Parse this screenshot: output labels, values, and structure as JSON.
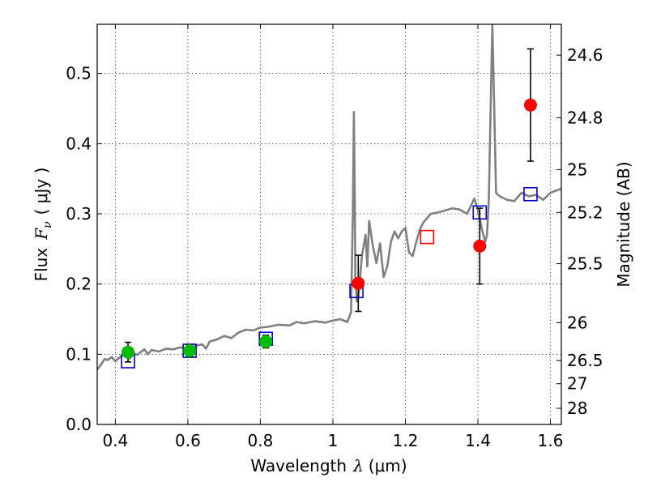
{
  "chart_data": {
    "type": "scatter",
    "xlabel_text": "Wavelength",
    "xlabel_symbol": "λ",
    "xlabel_unit": "(μm)",
    "ylabel_text": "Flux",
    "ylabel_symbol": "F",
    "ylabel_sub": "ν",
    "ylabel_unit": "( μJy )",
    "y2label": "Magnitude (AB)",
    "xlim": [
      0.35,
      1.63
    ],
    "ylim": [
      0.0,
      0.57
    ],
    "grid": true,
    "x_ticks": [
      0.4,
      0.6,
      0.8,
      1.0,
      1.2,
      1.4,
      1.6
    ],
    "x_tick_labels": [
      "0.4",
      "0.6",
      "0.8",
      "1",
      "1.2",
      "1.4",
      "1.6"
    ],
    "y_ticks": [
      0.0,
      0.1,
      0.2,
      0.3,
      0.4,
      0.5
    ],
    "y_tick_labels": [
      "0.0",
      "0.1",
      "0.2",
      "0.3",
      "0.4",
      "0.5"
    ],
    "mag_ticks": [
      {
        "label": "24.6",
        "flux": 0.526
      },
      {
        "label": "24.8",
        "flux": 0.437
      },
      {
        "label": "25",
        "flux": 0.363
      },
      {
        "label": "25.2",
        "flux": 0.302
      },
      {
        "label": "25.5",
        "flux": 0.229
      },
      {
        "label": "26",
        "flux": 0.145
      },
      {
        "label": "26.5",
        "flux": 0.091
      },
      {
        "label": "27",
        "flux": 0.058
      },
      {
        "label": "28",
        "flux": 0.023
      }
    ],
    "series": [
      {
        "name": "template-spectrum",
        "kind": "line",
        "color": "#808080",
        "x": [
          0.35,
          0.36,
          0.37,
          0.38,
          0.39,
          0.4,
          0.41,
          0.42,
          0.43,
          0.44,
          0.45,
          0.46,
          0.47,
          0.48,
          0.49,
          0.5,
          0.52,
          0.54,
          0.56,
          0.58,
          0.6,
          0.62,
          0.64,
          0.65,
          0.66,
          0.68,
          0.7,
          0.72,
          0.74,
          0.76,
          0.78,
          0.8,
          0.82,
          0.85,
          0.88,
          0.9,
          0.92,
          0.95,
          0.98,
          1.0,
          1.02,
          1.04,
          1.05,
          1.055,
          1.058,
          1.06,
          1.062,
          1.066,
          1.07,
          1.08,
          1.09,
          1.095,
          1.1,
          1.11,
          1.12,
          1.13,
          1.14,
          1.15,
          1.16,
          1.17,
          1.18,
          1.19,
          1.2,
          1.21,
          1.22,
          1.23,
          1.24,
          1.25,
          1.27,
          1.29,
          1.31,
          1.33,
          1.35,
          1.37,
          1.38,
          1.39,
          1.4,
          1.41,
          1.42,
          1.425,
          1.43,
          1.435,
          1.44,
          1.45,
          1.46,
          1.48,
          1.5,
          1.52,
          1.54,
          1.56,
          1.58,
          1.6,
          1.63
        ],
        "y": [
          0.078,
          0.085,
          0.093,
          0.092,
          0.096,
          0.09,
          0.095,
          0.098,
          0.1,
          0.094,
          0.102,
          0.099,
          0.103,
          0.107,
          0.1,
          0.106,
          0.104,
          0.108,
          0.107,
          0.11,
          0.106,
          0.112,
          0.114,
          0.108,
          0.118,
          0.121,
          0.126,
          0.123,
          0.131,
          0.135,
          0.134,
          0.138,
          0.139,
          0.142,
          0.141,
          0.146,
          0.144,
          0.147,
          0.145,
          0.148,
          0.15,
          0.146,
          0.16,
          0.3,
          0.445,
          0.35,
          0.21,
          0.175,
          0.18,
          0.24,
          0.27,
          0.225,
          0.29,
          0.255,
          0.23,
          0.258,
          0.21,
          0.225,
          0.26,
          0.275,
          0.265,
          0.275,
          0.28,
          0.245,
          0.24,
          0.26,
          0.278,
          0.288,
          0.3,
          0.302,
          0.305,
          0.308,
          0.306,
          0.3,
          0.311,
          0.322,
          0.305,
          0.28,
          0.26,
          0.27,
          0.32,
          0.45,
          0.57,
          0.33,
          0.325,
          0.32,
          0.318,
          0.33,
          0.325,
          0.327,
          0.32,
          0.33,
          0.336
        ]
      },
      {
        "name": "model-photometry",
        "kind": "open-square",
        "color": "#0000dd",
        "x": [
          0.435,
          0.605,
          0.815,
          1.065,
          1.405,
          1.545
        ],
        "y": [
          0.09,
          0.105,
          0.122,
          0.19,
          0.302,
          0.328
        ]
      },
      {
        "name": "model-photometry-highlight",
        "kind": "open-square",
        "color": "#ff0000",
        "x": [
          1.26
        ],
        "y": [
          0.267
        ]
      },
      {
        "name": "observed-optical",
        "kind": "filled-circle",
        "color": "#00bb00",
        "x": [
          0.435,
          0.605,
          0.815
        ],
        "y": [
          0.103,
          0.105,
          0.118
        ],
        "err": [
          0.014,
          0.009,
          0.009
        ]
      },
      {
        "name": "observed-nir",
        "kind": "filled-circle",
        "color": "#ff0000",
        "x": [
          1.07,
          1.405,
          1.545
        ],
        "y": [
          0.201,
          0.254,
          0.455
        ],
        "err": [
          0.04,
          0.054,
          0.08
        ]
      }
    ]
  }
}
